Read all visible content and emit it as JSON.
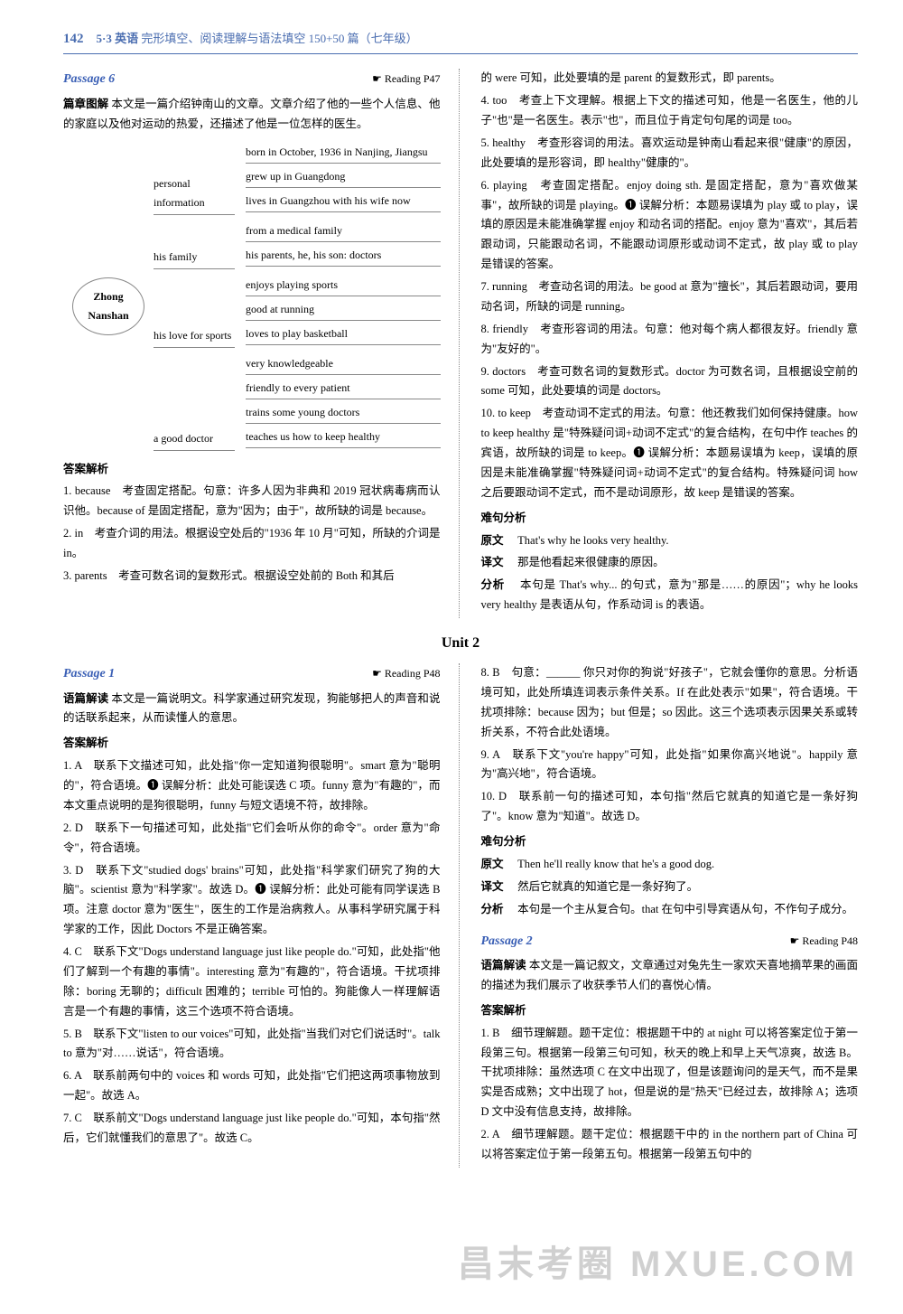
{
  "header": {
    "page_number": "142",
    "brand": "5·3 英语",
    "subtitle": "完形填空、阅读理解与语法填空 150+50 篇（七年级）"
  },
  "passage6": {
    "title": "Passage 6",
    "reading_ref": "Reading P47",
    "intro_label": "篇章图解",
    "intro": "本文是一篇介绍钟南山的文章。文章介绍了他的一些个人信息、他的家庭以及他对运动的热爱，还描述了他是一位怎样的医生。",
    "mindmap": {
      "center": "Zhong Nanshan",
      "branches": [
        {
          "label": "personal information",
          "leaves": [
            "born in October, 1936 in Nanjing, Jiangsu",
            "grew up in Guangdong",
            "lives in Guangzhou with his wife now"
          ]
        },
        {
          "label": "his family",
          "leaves": [
            "from a medical family",
            "his parents, he, his son: doctors"
          ]
        },
        {
          "label": "his love for sports",
          "leaves": [
            "enjoys playing sports",
            "good at running",
            "loves to play basketball"
          ]
        },
        {
          "label": "a good doctor",
          "leaves": [
            "very knowledgeable",
            "friendly to every patient",
            "trains some young doctors",
            "teaches us how to keep healthy"
          ]
        }
      ]
    },
    "answer_head": "答案解析",
    "items_left": [
      "1. because　考查固定搭配。句意：许多人因为非典和 2019 冠状病毒病而认识他。because of 是固定搭配，意为\"因为；由于\"，故所缺的词是 because。",
      "2. in　考查介词的用法。根据设空处后的\"1936 年 10 月\"可知，所缺的介词是 in。",
      "3. parents　考查可数名词的复数形式。根据设空处前的 Both 和其后"
    ],
    "items_right": [
      "的 were 可知，此处要填的是 parent 的复数形式，即 parents。",
      "4. too　考查上下文理解。根据上下文的描述可知，他是一名医生，他的儿子\"也\"是一名医生。表示\"也\"，而且位于肯定句句尾的词是 too。",
      "5. healthy　考查形容词的用法。喜欢运动是钟南山看起来很\"健康\"的原因，此处要填的是形容词，即 healthy\"健康的\"。",
      "6. playing　考查固定搭配。enjoy doing sth. 是固定搭配，意为\"喜欢做某事\"，故所缺的词是 playing。❶ 误解分析：本题易误填为 play 或 to play，误填的原因是未能准确掌握 enjoy 和动名词的搭配。enjoy 意为\"喜欢\"，其后若跟动词，只能跟动名词，不能跟动词原形或动词不定式，故 play 或 to play 是错误的答案。",
      "7. running　考查动名词的用法。be good at 意为\"擅长\"，其后若跟动词，要用动名词，所缺的词是 running。",
      "8. friendly　考查形容词的用法。句意：他对每个病人都很友好。friendly 意为\"友好的\"。",
      "9. doctors　考查可数名词的复数形式。doctor 为可数名词，且根据设空前的 some 可知，此处要填的词是 doctors。",
      "10. to keep　考查动词不定式的用法。句意：他还教我们如何保持健康。how to keep healthy 是\"特殊疑问词+动词不定式\"的复合结构，在句中作 teaches 的宾语，故所缺的词是 to keep。❶ 误解分析：本题易误填为 keep，误填的原因是未能准确掌握\"特殊疑问词+动词不定式\"的复合结构。特殊疑问词 how 之后要跟动词不定式，而不是动词原形，故 keep 是错误的答案。"
    ],
    "hard_sentence": {
      "head": "难句分析",
      "orig_label": "原文",
      "orig": "That's why he looks very healthy.",
      "trans_label": "译文",
      "trans": "那是他看起来很健康的原因。",
      "ana_label": "分析",
      "ana": "本句是 That's why... 的句式，意为\"那是……的原因\"；why he looks very healthy 是表语从句，作系动词 is 的表语。"
    }
  },
  "unit_title": "Unit 2",
  "passage1": {
    "title": "Passage 1",
    "reading_ref": "Reading P48",
    "intro_label": "语篇解读",
    "intro": "本文是一篇说明文。科学家通过研究发现，狗能够把人的声音和说的话联系起来，从而读懂人的意思。",
    "answer_head": "答案解析",
    "items_left": [
      "1. A　联系下文描述可知，此处指\"你一定知道狗很聪明\"。smart 意为\"聪明的\"，符合语境。❶ 误解分析：此处可能误选 C 项。funny 意为\"有趣的\"，而本文重点说明的是狗很聪明，funny 与短文语境不符，故排除。",
      "2. D　联系下一句描述可知，此处指\"它们会听从你的命令\"。order 意为\"命令\"，符合语境。",
      "3. D　联系下文\"studied dogs' brains\"可知，此处指\"科学家们研究了狗的大脑\"。scientist 意为\"科学家\"。故选 D。❶ 误解分析：此处可能有同学误选 B 项。注意 doctor 意为\"医生\"，医生的工作是治病救人。从事科学研究属于科学家的工作，因此 Doctors 不是正确答案。",
      "4. C　联系下文\"Dogs understand language just like people do.\"可知，此处指\"他们了解到一个有趣的事情\"。interesting 意为\"有趣的\"，符合语境。干扰项排除：boring 无聊的；difficult 困难的；terrible 可怕的。狗能像人一样理解语言是一个有趣的事情，这三个选项不符合语境。",
      "5. B　联系下文\"listen to our voices\"可知，此处指\"当我们对它们说话时\"。talk to 意为\"对……说话\"，符合语境。",
      "6. A　联系前两句中的 voices 和 words 可知，此处指\"它们把这两项事物放到一起\"。故选 A。",
      "7. C　联系前文\"Dogs understand language just like people do.\"可知，本句指\"然后，它们就懂我们的意思了\"。故选 C。"
    ],
    "items_right": [
      "8. B　句意：______ 你只对你的狗说\"好孩子\"，它就会懂你的意思。分析语境可知，此处所填连词表示条件关系。If 在此处表示\"如果\"，符合语境。干扰项排除：because 因为；but 但是；so 因此。这三个选项表示因果关系或转折关系，不符合此处语境。",
      "9. A　联系下文\"you're happy\"可知，此处指\"如果你高兴地说\"。happily 意为\"高兴地\"，符合语境。",
      "10. D　联系前一句的描述可知，本句指\"然后它就真的知道它是一条好狗了\"。know 意为\"知道\"。故选 D。"
    ],
    "hard_sentence": {
      "head": "难句分析",
      "orig_label": "原文",
      "orig": "Then he'll really know that he's a good dog.",
      "trans_label": "译文",
      "trans": "然后它就真的知道它是一条好狗了。",
      "ana_label": "分析",
      "ana": "本句是一个主从复合句。that 在句中引导宾语从句，不作句子成分。"
    }
  },
  "passage2": {
    "title": "Passage 2",
    "reading_ref": "Reading P48",
    "intro_label": "语篇解读",
    "intro": "本文是一篇记叙文，文章通过对兔先生一家欢天喜地摘苹果的画面的描述为我们展示了收获季节人们的喜悦心情。",
    "answer_head": "答案解析",
    "items": [
      "1. B　细节理解题。题干定位：根据题干中的 at night 可以将答案定位于第一段第三句。根据第一段第三句可知，秋天的晚上和早上天气凉爽，故选 B。干扰项排除：虽然选项 C 在文中出现了，但是该题询问的是天气，而不是果实是否成熟；文中出现了 hot，但是说的是\"热天\"已经过去，故排除 A；选项 D 文中没有信息支持，故排除。",
      "2. A　细节理解题。题干定位：根据题干中的 in the northern part of China 可以将答案定位于第一段第五句。根据第一段第五句中的"
    ]
  },
  "watermark": "昌末考圈 MXUE.COM"
}
